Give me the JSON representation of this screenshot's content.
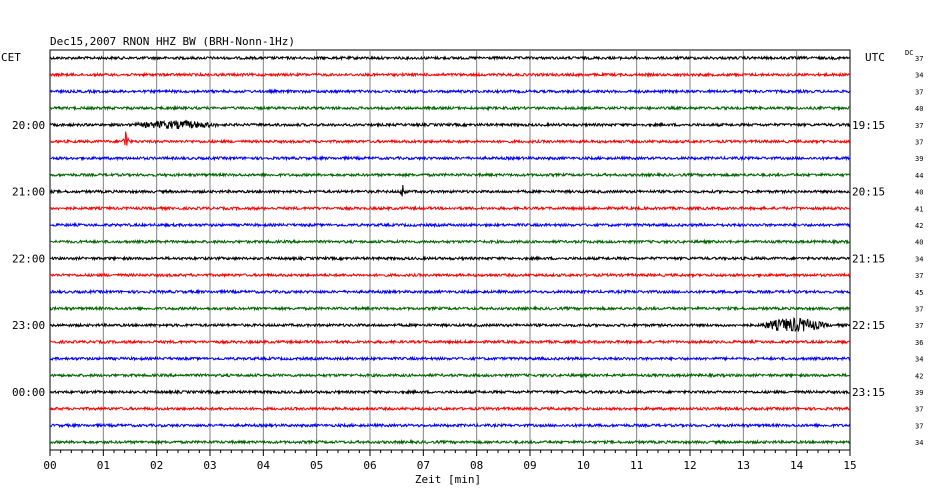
{
  "chart_data": {
    "type": "line",
    "title": "Dec15,2007   RNON HHZ BW (BRH-Nonn-1Hz)",
    "left_tz_label": "CET",
    "right_tz_label": "UTC",
    "dc_label": "DC",
    "xlabel": "Zeit [min]",
    "xlim": [
      0,
      15
    ],
    "x_ticks": [
      "00",
      "01",
      "02",
      "03",
      "04",
      "05",
      "06",
      "07",
      "08",
      "09",
      "10",
      "11",
      "12",
      "13",
      "14",
      "15"
    ],
    "trace_colors": [
      "#000000",
      "#ff0000",
      "#0000ff",
      "#006400"
    ],
    "grid": true,
    "left_hour_labels": [
      {
        "row": 4,
        "label": "20:00"
      },
      {
        "row": 8,
        "label": "21:00"
      },
      {
        "row": 12,
        "label": "22:00"
      },
      {
        "row": 16,
        "label": "23:00"
      },
      {
        "row": 20,
        "label": "00:00"
      }
    ],
    "right_hour_labels": [
      {
        "row": 4,
        "label": "19:15"
      },
      {
        "row": 8,
        "label": "20:15"
      },
      {
        "row": 12,
        "label": "21:15"
      },
      {
        "row": 16,
        "label": "22:15"
      },
      {
        "row": 20,
        "label": "23:15"
      }
    ],
    "dc_values": [
      "37",
      "34",
      "37",
      "40",
      "37",
      "37",
      "39",
      "44",
      "40",
      "41",
      "42",
      "40",
      "34",
      "37",
      "45",
      "37",
      "37",
      "36",
      "34",
      "42",
      "39",
      "37",
      "37",
      "34"
    ],
    "events": [
      {
        "row": 4,
        "x_start_min": 1.5,
        "x_end_min": 3.2,
        "amplitude": 3
      },
      {
        "row": 5,
        "x_min": 1.42,
        "amplitude": 13
      },
      {
        "row": 8,
        "x_min": 6.62,
        "amplitude": 8
      },
      {
        "row": 16,
        "x_start_min": 13.3,
        "x_end_min": 14.6,
        "amplitude": 6
      }
    ]
  }
}
